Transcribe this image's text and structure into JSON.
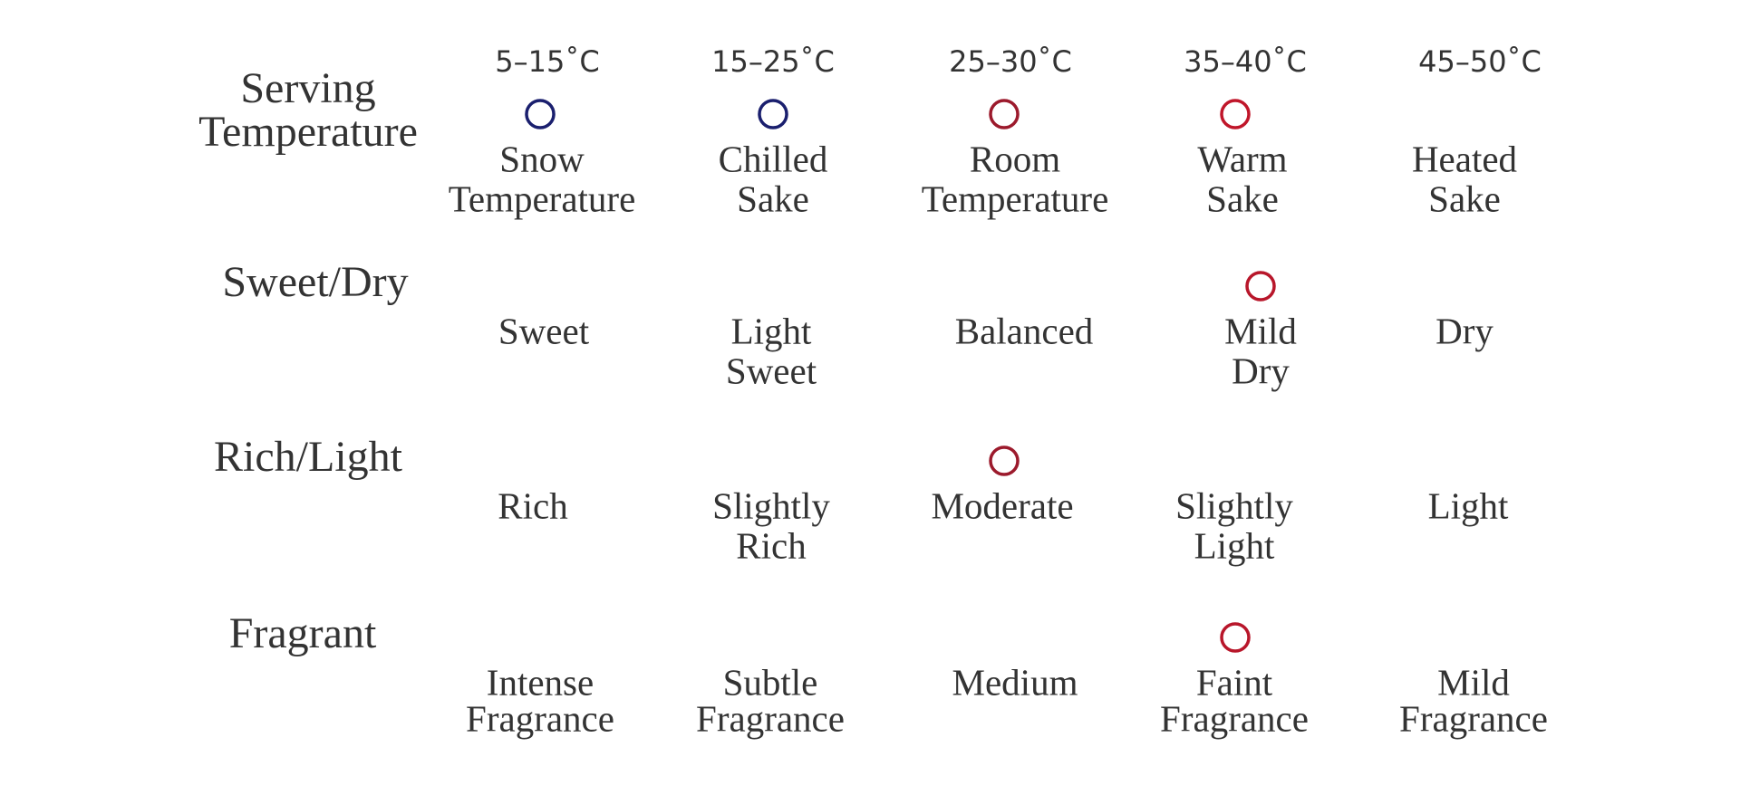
{
  "rows": [
    {
      "title": [
        "Serving",
        "Temperature"
      ],
      "temperatures": [
        "5–15˚C",
        "15–25˚C",
        "25–30˚C",
        "35–40˚C",
        "45–50˚C"
      ],
      "labels": [
        [
          "Snow",
          "Temperature"
        ],
        [
          "Chilled",
          "Sake"
        ],
        [
          "Room",
          "Temperature"
        ],
        [
          "Warm",
          "Sake"
        ],
        [
          "Heated",
          "Sake"
        ]
      ]
    },
    {
      "title": [
        "Sweet/Dry"
      ],
      "labels": [
        [
          "Sweet"
        ],
        [
          "Light",
          "Sweet"
        ],
        [
          "Balanced"
        ],
        [
          "Mild",
          "Dry"
        ],
        [
          "Dry"
        ]
      ]
    },
    {
      "title": [
        "Rich/Light"
      ],
      "labels": [
        [
          "Rich"
        ],
        [
          "Slightly",
          "Rich"
        ],
        [
          "Moderate"
        ],
        [
          "Slightly",
          "Light"
        ],
        [
          "Light"
        ]
      ]
    },
    {
      "title": [
        "Fragrant"
      ],
      "labels": [
        [
          "Intense",
          "Fragrance"
        ],
        [
          "Subtle",
          "Fragrance"
        ],
        [
          "Medium"
        ],
        [
          "Faint",
          "Fragrance"
        ],
        [
          "Mild",
          "Fragrance"
        ]
      ]
    }
  ]
}
